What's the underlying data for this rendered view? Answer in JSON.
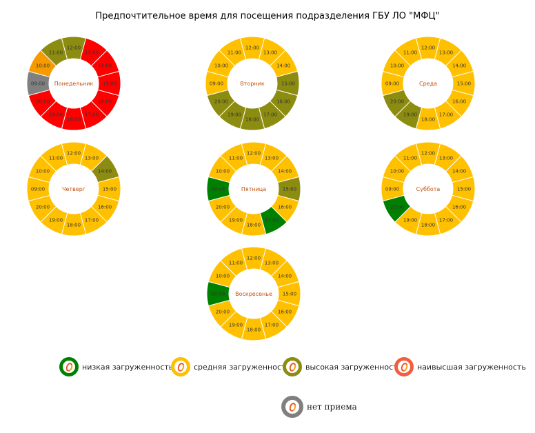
{
  "title": "Предпочтительное время для посещения подразделения ГБУ ЛО \"МФЦ\"",
  "colors": {
    "low": "#008000",
    "medium": "#FFC000",
    "high": "#8C8C10",
    "highest": "#FF0000",
    "moderate": "#F59B00",
    "closed": "#808080"
  },
  "chart_data": {
    "type": "pie",
    "hours": [
      "09:00",
      "10:00",
      "11:00",
      "12:00",
      "13:00",
      "14:00",
      "15:00",
      "16:00",
      "17:00",
      "18:00",
      "19:00",
      "20:00"
    ],
    "days": [
      {
        "name": "Понедельник",
        "load": [
          "closed",
          "moderate",
          "high",
          "high",
          "highest",
          "highest",
          "highest",
          "highest",
          "highest",
          "highest",
          "highest",
          "highest"
        ]
      },
      {
        "name": "Вторник",
        "load": [
          "medium",
          "medium",
          "medium",
          "medium",
          "medium",
          "medium",
          "high",
          "high",
          "high",
          "high",
          "high",
          "high"
        ]
      },
      {
        "name": "Среда",
        "load": [
          "medium",
          "medium",
          "medium",
          "medium",
          "medium",
          "medium",
          "medium",
          "medium",
          "medium",
          "medium",
          "high",
          "high"
        ]
      },
      {
        "name": "Четверг",
        "load": [
          "medium",
          "medium",
          "medium",
          "medium",
          "medium",
          "high",
          "medium",
          "medium",
          "medium",
          "medium",
          "medium",
          "medium"
        ]
      },
      {
        "name": "Пятница",
        "load": [
          "low",
          "medium",
          "medium",
          "medium",
          "medium",
          "medium",
          "high",
          "medium",
          "low",
          "medium",
          "medium",
          "medium"
        ]
      },
      {
        "name": "Суббота",
        "load": [
          "medium",
          "medium",
          "medium",
          "medium",
          "medium",
          "medium",
          "medium",
          "medium",
          "medium",
          "medium",
          "medium",
          "low"
        ]
      },
      {
        "name": "Воскресенье",
        "load": [
          "low",
          "medium",
          "medium",
          "medium",
          "medium",
          "medium",
          "medium",
          "medium",
          "medium",
          "medium",
          "medium",
          "medium"
        ]
      }
    ]
  },
  "legend": [
    {
      "key": "low",
      "label": "низкая загруженность"
    },
    {
      "key": "medium",
      "label": "средняя загруженность"
    },
    {
      "key": "high",
      "label": "высокая загруженность"
    },
    {
      "key": "highest",
      "label": "наивысшая загруженность"
    },
    {
      "key": "closed",
      "label": "нет приема"
    }
  ]
}
